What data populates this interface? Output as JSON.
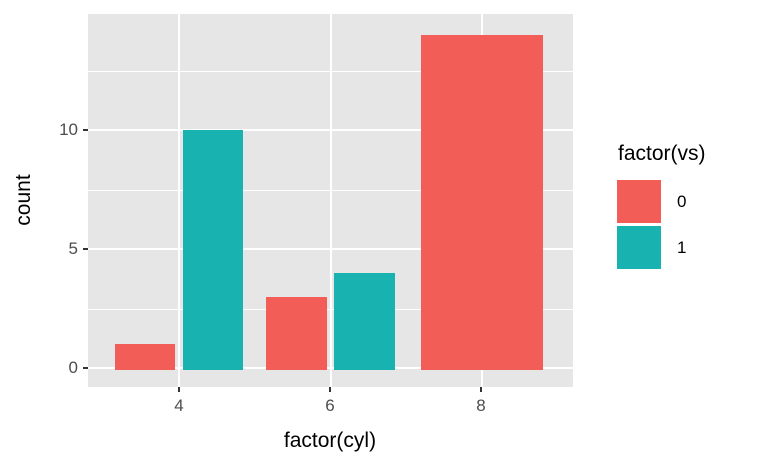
{
  "chart_data": {
    "type": "bar",
    "position": "dodge",
    "title": "",
    "xlabel": "factor(cyl)",
    "ylabel": "count",
    "categories": [
      "4",
      "6",
      "8"
    ],
    "series": [
      {
        "name": "0",
        "color": "#F25D58",
        "values": [
          1,
          3,
          14
        ]
      },
      {
        "name": "1",
        "color": "#18B3B0",
        "values": [
          10,
          4,
          null
        ]
      }
    ],
    "x_tick_labels": [
      "4",
      "6",
      "8"
    ],
    "y_tick_labels": [
      "0",
      "5",
      "10"
    ],
    "y_major_gridlines": [
      0,
      5,
      10
    ],
    "y_minor_gridlines": [
      2.5,
      7.5,
      12.5
    ],
    "ylim": [
      -0.75,
      14.95
    ],
    "grid": "white major+minor horizontal lines and major vertical lines on grey panel",
    "legend_position": "right",
    "legend_title": "factor(vs)"
  },
  "axes": {
    "x": {
      "title": "factor(cyl)",
      "tick_labels": [
        "4",
        "6",
        "8"
      ]
    },
    "y": {
      "title": "count",
      "tick_labels": [
        "0",
        "5",
        "10"
      ]
    }
  },
  "legend": {
    "title": "factor(vs)",
    "items": [
      {
        "label": "0",
        "color": "#F25D58"
      },
      {
        "label": "1",
        "color": "#18B3B0"
      }
    ]
  },
  "colors": {
    "fill_vs0": "#F25D58",
    "fill_vs1": "#18B3B0",
    "panel_background": "#E6E6E6",
    "gridline": "#FFFFFF",
    "tick_text": "#4D4D4D",
    "axis_title_text": "#000000",
    "figure_background": "#FFFFFF"
  }
}
